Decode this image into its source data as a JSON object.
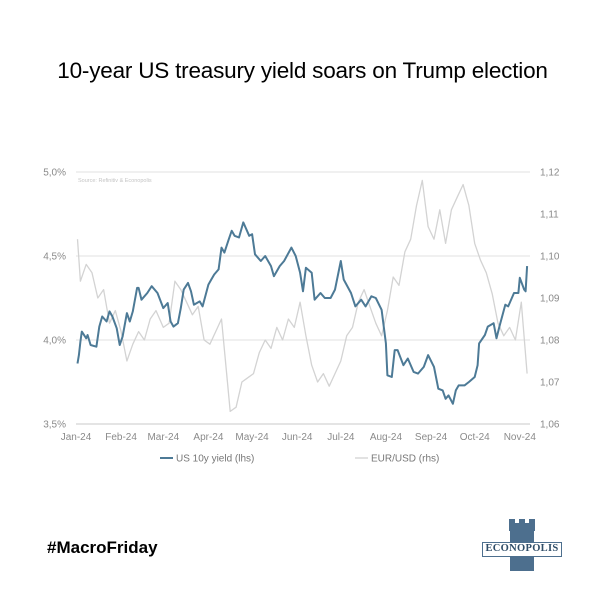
{
  "title": "10-year US treasury yield soars on Trump election",
  "hashtag": "#MacroFriday",
  "brand": {
    "name": "ECONOPOLIS",
    "logo_icon": "castle-tower-icon",
    "color": "#4d6f8e"
  },
  "chart_data": {
    "type": "line",
    "source": "Source: Refinitiv & Econopolis",
    "x_tick_labels": [
      "Jan-24",
      "Feb-24",
      "Mar-24",
      "Apr-24",
      "May-24",
      "Jun-24",
      "Jul-24",
      "Aug-24",
      "Sep-24",
      "Oct-24",
      "Nov-24"
    ],
    "y_left": {
      "ticks": [
        "3,5%",
        "4,0%",
        "4,5%",
        "5,0%"
      ],
      "range": [
        3.5,
        5.0
      ],
      "grid": true
    },
    "y_right": {
      "ticks": [
        "1,06",
        "1,07",
        "1,08",
        "1,09",
        "1,10",
        "1,11",
        "1,12"
      ],
      "range": [
        1.06,
        1.12
      ]
    },
    "legend_position": "bottom",
    "series": [
      {
        "name": "US 10y yield (lhs)",
        "axis": "left",
        "color": "#4d7a96",
        "x": [
          "2024-01-02",
          "2024-01-03",
          "2024-01-04",
          "2024-01-05",
          "2024-01-08",
          "2024-01-09",
          "2024-01-11",
          "2024-01-15",
          "2024-01-17",
          "2024-01-19",
          "2024-01-22",
          "2024-01-24",
          "2024-01-26",
          "2024-01-29",
          "2024-01-31",
          "2024-02-02",
          "2024-02-05",
          "2024-02-07",
          "2024-02-09",
          "2024-02-12",
          "2024-02-13",
          "2024-02-15",
          "2024-02-19",
          "2024-02-22",
          "2024-02-26",
          "2024-03-01",
          "2024-03-04",
          "2024-03-06",
          "2024-03-08",
          "2024-03-11",
          "2024-03-13",
          "2024-03-15",
          "2024-03-18",
          "2024-03-20",
          "2024-03-22",
          "2024-03-26",
          "2024-03-28",
          "2024-04-01",
          "2024-04-03",
          "2024-04-05",
          "2024-04-08",
          "2024-04-10",
          "2024-04-12",
          "2024-04-15",
          "2024-04-17",
          "2024-04-19",
          "2024-04-22",
          "2024-04-25",
          "2024-04-29",
          "2024-05-01",
          "2024-05-03",
          "2024-05-07",
          "2024-05-10",
          "2024-05-14",
          "2024-05-16",
          "2024-05-20",
          "2024-05-23",
          "2024-05-28",
          "2024-05-31",
          "2024-06-03",
          "2024-06-05",
          "2024-06-07",
          "2024-06-11",
          "2024-06-13",
          "2024-06-17",
          "2024-06-20",
          "2024-06-24",
          "2024-06-27",
          "2024-07-01",
          "2024-07-03",
          "2024-07-08",
          "2024-07-11",
          "2024-07-15",
          "2024-07-18",
          "2024-07-22",
          "2024-07-25",
          "2024-07-29",
          "2024-08-01",
          "2024-08-02",
          "2024-08-05",
          "2024-08-07",
          "2024-08-09",
          "2024-08-13",
          "2024-08-16",
          "2024-08-20",
          "2024-08-23",
          "2024-08-27",
          "2024-08-30",
          "2024-09-03",
          "2024-09-06",
          "2024-09-09",
          "2024-09-11",
          "2024-09-13",
          "2024-09-16",
          "2024-09-18",
          "2024-09-20",
          "2024-09-24",
          "2024-09-27",
          "2024-10-01",
          "2024-10-03",
          "2024-10-04",
          "2024-10-08",
          "2024-10-10",
          "2024-10-14",
          "2024-10-16",
          "2024-10-18",
          "2024-10-22",
          "2024-10-24",
          "2024-10-28",
          "2024-10-31",
          "2024-11-01",
          "2024-11-04",
          "2024-11-05",
          "2024-11-06"
        ],
        "y": [
          3.86,
          3.91,
          3.99,
          4.05,
          4.01,
          4.03,
          3.97,
          3.96,
          4.08,
          4.14,
          4.11,
          4.17,
          4.14,
          4.07,
          3.97,
          4.02,
          4.16,
          4.11,
          4.17,
          4.31,
          4.31,
          4.24,
          4.28,
          4.32,
          4.28,
          4.19,
          4.22,
          4.11,
          4.08,
          4.1,
          4.19,
          4.3,
          4.34,
          4.29,
          4.21,
          4.23,
          4.2,
          4.33,
          4.36,
          4.39,
          4.42,
          4.55,
          4.52,
          4.6,
          4.65,
          4.62,
          4.61,
          4.7,
          4.62,
          4.63,
          4.51,
          4.47,
          4.5,
          4.44,
          4.38,
          4.44,
          4.47,
          4.55,
          4.5,
          4.4,
          4.29,
          4.43,
          4.4,
          4.24,
          4.28,
          4.25,
          4.25,
          4.3,
          4.47,
          4.36,
          4.28,
          4.2,
          4.24,
          4.2,
          4.26,
          4.25,
          4.18,
          3.98,
          3.79,
          3.78,
          3.94,
          3.94,
          3.85,
          3.89,
          3.81,
          3.8,
          3.84,
          3.91,
          3.84,
          3.71,
          3.7,
          3.65,
          3.67,
          3.62,
          3.7,
          3.73,
          3.73,
          3.75,
          3.78,
          3.85,
          3.98,
          4.03,
          4.08,
          4.1,
          4.01,
          4.08,
          4.21,
          4.2,
          4.28,
          4.28,
          4.37,
          4.3,
          4.29,
          4.44
        ]
      },
      {
        "name": "EUR/USD (rhs)",
        "axis": "right",
        "color": "#d3d3d3",
        "x": [
          "2024-01-02",
          "2024-01-04",
          "2024-01-08",
          "2024-01-12",
          "2024-01-16",
          "2024-01-20",
          "2024-01-24",
          "2024-01-28",
          "2024-02-01",
          "2024-02-05",
          "2024-02-09",
          "2024-02-13",
          "2024-02-17",
          "2024-02-21",
          "2024-02-25",
          "2024-03-01",
          "2024-03-05",
          "2024-03-09",
          "2024-03-13",
          "2024-03-17",
          "2024-03-21",
          "2024-03-25",
          "2024-03-29",
          "2024-04-02",
          "2024-04-06",
          "2024-04-10",
          "2024-04-16",
          "2024-04-20",
          "2024-04-24",
          "2024-04-28",
          "2024-05-02",
          "2024-05-06",
          "2024-05-10",
          "2024-05-14",
          "2024-05-18",
          "2024-05-22",
          "2024-05-26",
          "2024-05-30",
          "2024-06-03",
          "2024-06-07",
          "2024-06-11",
          "2024-06-15",
          "2024-06-19",
          "2024-06-23",
          "2024-06-27",
          "2024-07-01",
          "2024-07-05",
          "2024-07-09",
          "2024-07-13",
          "2024-07-17",
          "2024-07-21",
          "2024-07-25",
          "2024-07-29",
          "2024-08-02",
          "2024-08-06",
          "2024-08-10",
          "2024-08-14",
          "2024-08-18",
          "2024-08-22",
          "2024-08-26",
          "2024-08-30",
          "2024-09-03",
          "2024-09-07",
          "2024-09-11",
          "2024-09-15",
          "2024-09-19",
          "2024-09-23",
          "2024-09-27",
          "2024-10-01",
          "2024-10-05",
          "2024-10-09",
          "2024-10-13",
          "2024-10-17",
          "2024-10-21",
          "2024-10-25",
          "2024-10-29",
          "2024-11-02",
          "2024-11-06"
        ],
        "y": [
          1.104,
          1.094,
          1.098,
          1.096,
          1.09,
          1.092,
          1.084,
          1.087,
          1.082,
          1.075,
          1.079,
          1.082,
          1.08,
          1.085,
          1.087,
          1.083,
          1.084,
          1.094,
          1.092,
          1.089,
          1.086,
          1.088,
          1.08,
          1.079,
          1.082,
          1.085,
          1.063,
          1.064,
          1.07,
          1.071,
          1.072,
          1.077,
          1.08,
          1.078,
          1.083,
          1.08,
          1.085,
          1.083,
          1.089,
          1.081,
          1.074,
          1.07,
          1.072,
          1.069,
          1.072,
          1.075,
          1.081,
          1.083,
          1.089,
          1.092,
          1.088,
          1.084,
          1.081,
          1.087,
          1.095,
          1.093,
          1.101,
          1.104,
          1.112,
          1.118,
          1.107,
          1.104,
          1.111,
          1.103,
          1.111,
          1.114,
          1.117,
          1.112,
          1.103,
          1.099,
          1.096,
          1.091,
          1.084,
          1.081,
          1.083,
          1.08,
          1.089,
          1.072
        ]
      }
    ]
  }
}
